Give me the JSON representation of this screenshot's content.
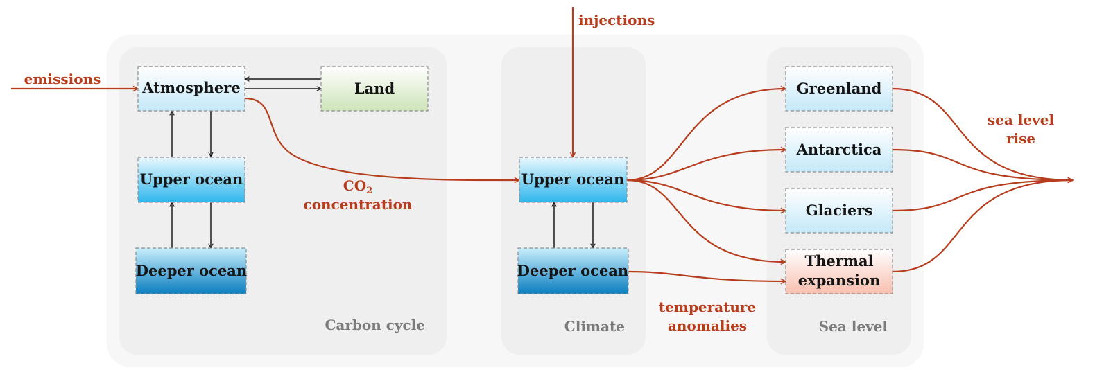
{
  "colors": {
    "flow": "#b63e1e",
    "panel_label": "#7a7a7a",
    "outer_panel": "#f7f7f7",
    "inner_panel": "#efefef",
    "ice_box": "#d3eefa",
    "ocean_box": "#4ec3ef",
    "deep_ocean_box": "#1989c8",
    "land_box": "#d5e8c6",
    "thermal_box": "#f8c8b8"
  },
  "panels": {
    "carbon_cycle": "Carbon cycle",
    "climate": "Climate",
    "sea_level": "Sea level"
  },
  "boxes": {
    "atmosphere": "Atmosphere",
    "land": "Land",
    "carbon_upper_ocean": "Upper ocean",
    "carbon_deeper_ocean": "Deeper ocean",
    "climate_upper_ocean": "Upper ocean",
    "climate_deeper_ocean": "Deeper ocean",
    "greenland": "Greenland",
    "antarctica": "Antarctica",
    "glaciers": "Glaciers",
    "thermal_line1": "Thermal",
    "thermal_line2": "expansion"
  },
  "flows": {
    "emissions": "emissions",
    "injections": "injections",
    "co2_prefix": "CO",
    "co2_subscript": "2",
    "concentration": "concentration",
    "temperature": "temperature",
    "anomalies": "anomalies",
    "sea_level_rise_line1": "sea level",
    "sea_level_rise_line2": "rise"
  }
}
